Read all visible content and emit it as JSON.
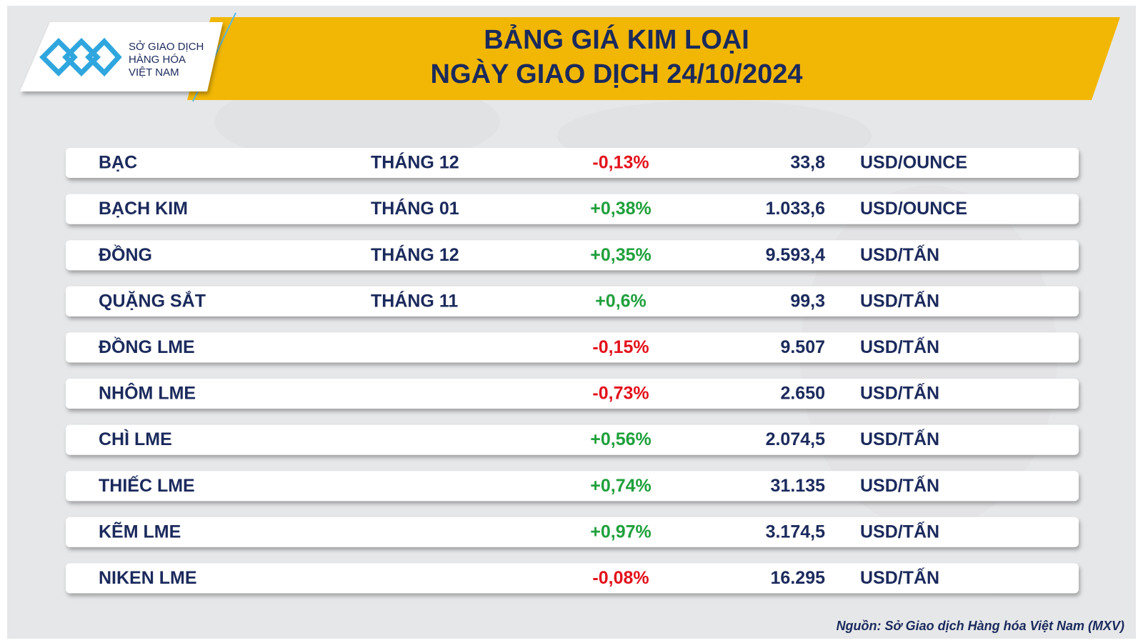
{
  "logo": {
    "lines": [
      "SỞ GIAO DỊCH",
      "HÀNG HÓA",
      "VIỆT NAM"
    ]
  },
  "header": {
    "title_lines": [
      "BẢNG GIÁ KIM LOẠI",
      "NGÀY GIAO DỊCH 24/10/2024"
    ]
  },
  "table": {
    "rows": [
      {
        "name": "BẠC",
        "month": "THÁNG 12",
        "change": "-0,13%",
        "price": "33,8",
        "unit": "USD/OUNCE"
      },
      {
        "name": "BẠCH KIM",
        "month": "THÁNG 01",
        "change": "+0,38%",
        "price": "1.033,6",
        "unit": "USD/OUNCE"
      },
      {
        "name": "ĐỒNG",
        "month": "THÁNG 12",
        "change": "+0,35%",
        "price": "9.593,4",
        "unit": "USD/TẤN"
      },
      {
        "name": "QUẶNG SẮT",
        "month": "THÁNG 11",
        "change": "+0,6%",
        "price": "99,3",
        "unit": "USD/TẤN"
      },
      {
        "name": "ĐỒNG LME",
        "change": "-0,15%",
        "price": "9.507",
        "unit": "USD/TẤN"
      },
      {
        "name": "NHÔM LME",
        "change": "-0,73%",
        "price": "2.650",
        "unit": "USD/TẤN"
      },
      {
        "name": "CHÌ LME",
        "change": "+0,56%",
        "price": "2.074,5",
        "unit": "USD/TẤN"
      },
      {
        "name": "THIẾC LME",
        "change": "+0,74%",
        "price": "31.135",
        "unit": "USD/TẤN"
      },
      {
        "name": "KẼM LME",
        "change": "+0,97%",
        "price": "3.174,5",
        "unit": "USD/TẤN"
      },
      {
        "name": "NIKEN LME",
        "change": "-0,08%",
        "price": "16.295",
        "unit": "USD/TẤN"
      }
    ]
  },
  "source": "Nguồn: Sở Giao dịch Hàng hóa Việt Nam (MXV)"
}
